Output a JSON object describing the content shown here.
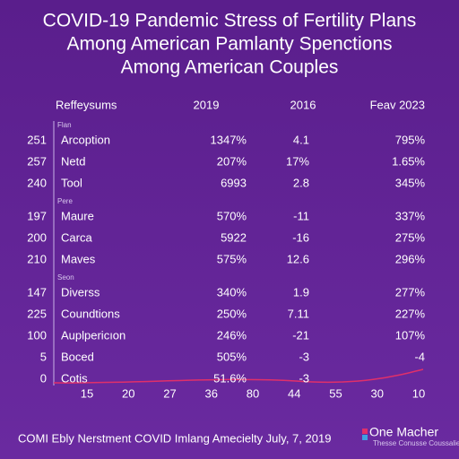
{
  "title": [
    "COVID-19 Pandemic Stress of Fertility Plans",
    "Among American Pamlanty Spenctions",
    "Among American Couples"
  ],
  "table": {
    "header": [
      "Reffeysums",
      "2019",
      "2016",
      "Feav 2023"
    ],
    "groups": [
      {
        "label": "Flan",
        "rows": [
          [
            "251",
            "Arcoption",
            "1347%",
            "4.1",
            "795%"
          ],
          [
            "257",
            "Netd",
            "207%",
            "17%",
            "1.65%"
          ],
          [
            "240",
            "Tool",
            "6993",
            "2.8",
            "345%"
          ]
        ]
      },
      {
        "label": "Pere",
        "rows": [
          [
            "197",
            "Maure",
            "570%",
            "-11",
            "337%"
          ],
          [
            "200",
            "Carca",
            "5922",
            "-16",
            "275%"
          ],
          [
            "210",
            "Maves",
            "575%",
            "12.6",
            "296%"
          ]
        ]
      },
      {
        "label": "Seon",
        "rows": [
          [
            "147",
            "Diverss",
            "340%",
            "1.9",
            "277%"
          ],
          [
            "225",
            "Coundtions",
            "250%",
            "7.11",
            "227%"
          ],
          [
            "100",
            "Auplpericıon",
            "246%",
            "-21",
            "107%"
          ],
          [
            "5",
            "Boced",
            "505%",
            "-3",
            "-4"
          ],
          [
            "0",
            "Cotis",
            "51.6%",
            "-3"
          ]
        ]
      }
    ]
  },
  "axis_labels": [
    "15",
    "20",
    "27",
    "36",
    "80",
    "44",
    "55",
    "30",
    "10"
  ],
  "footer": "COMI Ebly Nerstment COVID Imlang Amecielty July, 7, 2019",
  "logo": {
    "name": "One Macher",
    "tagline": "Thesse Conusse Coussalies"
  }
}
